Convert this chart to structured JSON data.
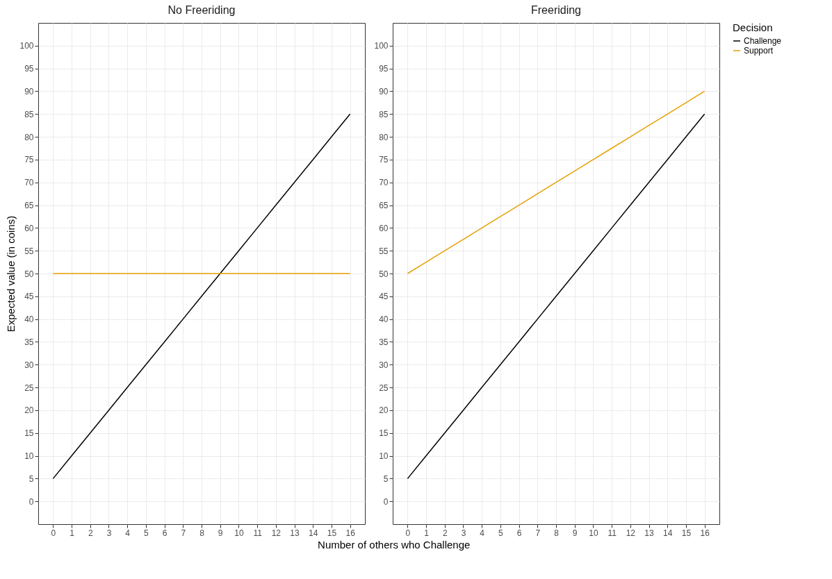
{
  "chart_data": [
    {
      "type": "line",
      "title": "No Freeriding",
      "xlabel": "Number of others who Challenge",
      "ylabel": "Expected value (in coins)",
      "x": [
        0,
        1,
        2,
        3,
        4,
        5,
        6,
        7,
        8,
        9,
        10,
        11,
        12,
        13,
        14,
        15,
        16
      ],
      "xlim": [
        -0.8,
        16.8
      ],
      "xticks": [
        0,
        1,
        2,
        3,
        4,
        5,
        6,
        7,
        8,
        9,
        10,
        11,
        12,
        13,
        14,
        15,
        16
      ],
      "ylim": [
        -5,
        105
      ],
      "yticks": [
        0,
        5,
        10,
        15,
        20,
        25,
        30,
        35,
        40,
        45,
        50,
        55,
        60,
        65,
        70,
        75,
        80,
        85,
        90,
        95,
        100
      ],
      "grid": true,
      "legend": "right",
      "series": [
        {
          "name": "Challenge",
          "color": "#000000",
          "values": [
            5,
            10,
            15,
            20,
            25,
            30,
            35,
            40,
            45,
            50,
            55,
            60,
            65,
            70,
            75,
            80,
            85
          ]
        },
        {
          "name": "Support",
          "color": "#e69f00",
          "values": [
            50,
            50,
            50,
            50,
            50,
            50,
            50,
            50,
            50,
            50,
            50,
            50,
            50,
            50,
            50,
            50,
            50
          ]
        }
      ]
    },
    {
      "type": "line",
      "title": "Freeriding",
      "legend_title": "Decision",
      "x": [
        0,
        1,
        2,
        3,
        4,
        5,
        6,
        7,
        8,
        9,
        10,
        11,
        12,
        13,
        14,
        15,
        16
      ],
      "xlim": [
        -0.8,
        16.8
      ],
      "xticks": [
        0,
        1,
        2,
        3,
        4,
        5,
        6,
        7,
        8,
        9,
        10,
        11,
        12,
        13,
        14,
        15,
        16
      ],
      "ylim": [
        -5,
        105
      ],
      "yticks": [
        0,
        5,
        10,
        15,
        20,
        25,
        30,
        35,
        40,
        45,
        50,
        55,
        60,
        65,
        70,
        75,
        80,
        85,
        90,
        95,
        100
      ],
      "grid": true,
      "legend": "right",
      "series": [
        {
          "name": "Challenge",
          "color": "#000000",
          "values": [
            5,
            10,
            15,
            20,
            25,
            30,
            35,
            40,
            45,
            50,
            55,
            60,
            65,
            70,
            75,
            80,
            85
          ]
        },
        {
          "name": "Support",
          "color": "#e69f00",
          "values": [
            50,
            52.5,
            55,
            57.5,
            60,
            62.5,
            65,
            67.5,
            70,
            72.5,
            75,
            77.5,
            80,
            82.5,
            85,
            87.5,
            90
          ]
        }
      ]
    }
  ]
}
